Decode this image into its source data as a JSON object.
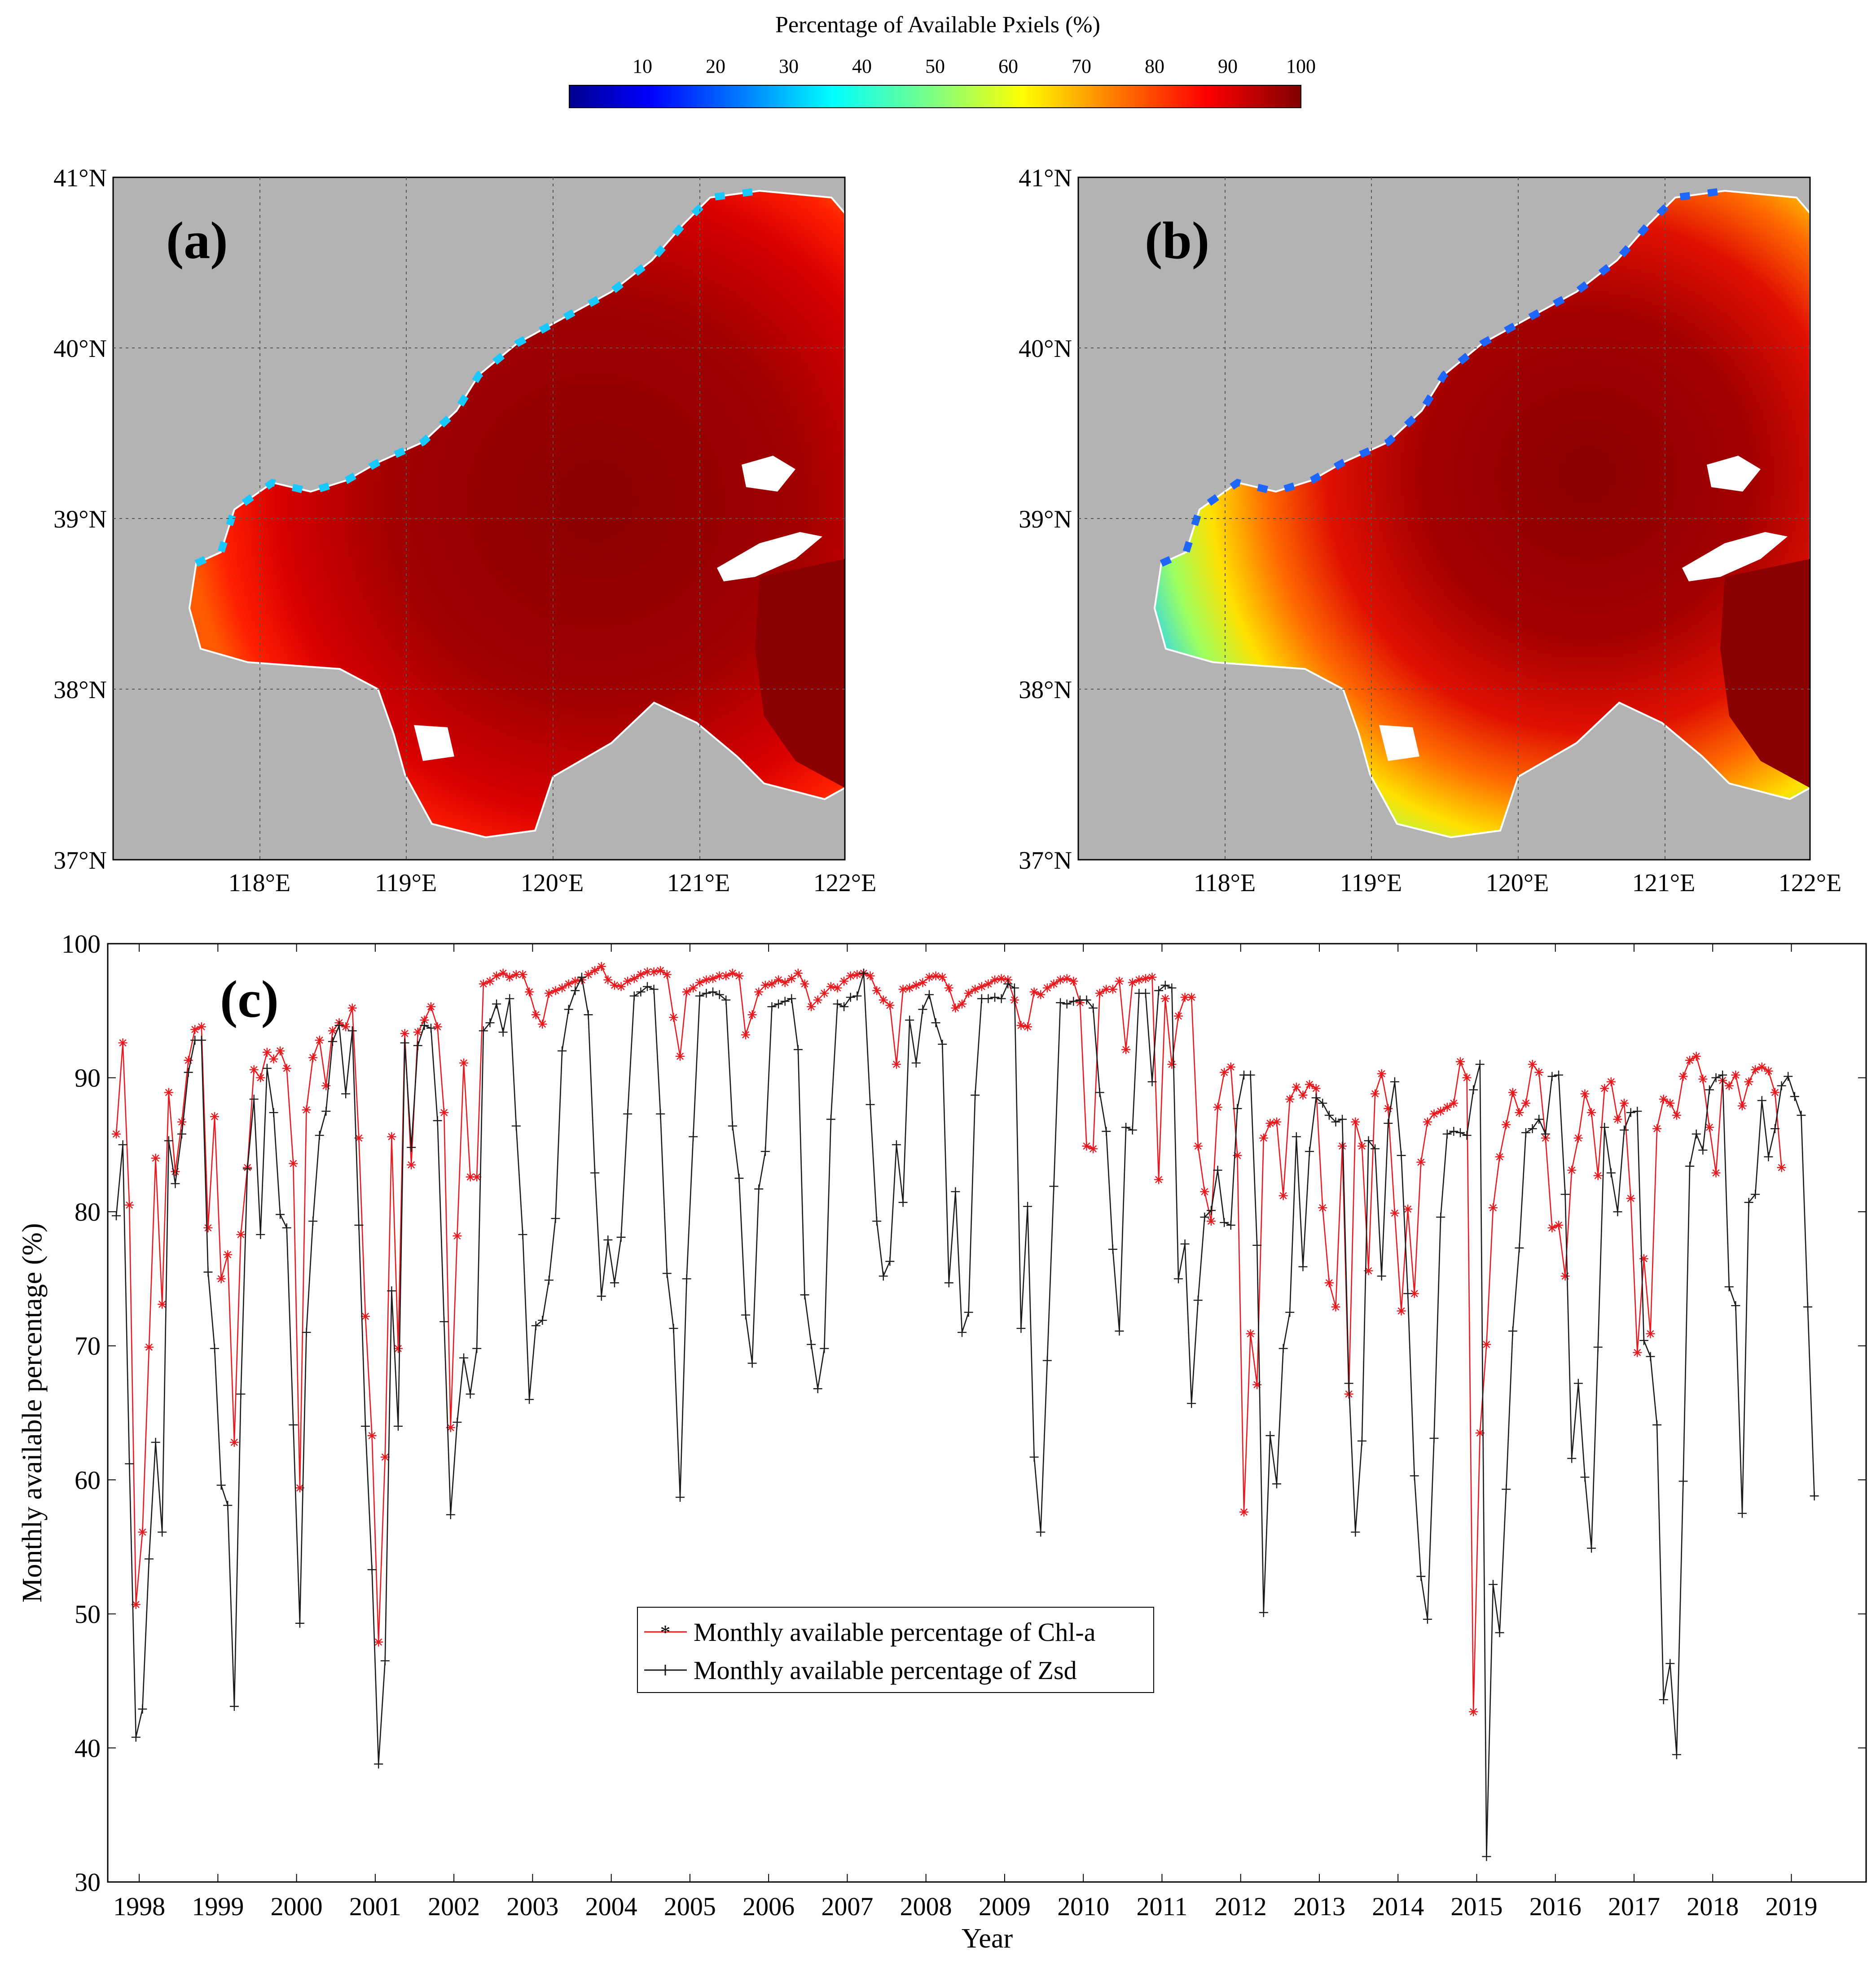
{
  "colorbar": {
    "title": "Percentage of Available Pxiels (%)",
    "ticks": [
      "10",
      "20",
      "30",
      "40",
      "50",
      "60",
      "70",
      "80",
      "90",
      "100"
    ],
    "min": 0,
    "max": 100,
    "colormap": "jet",
    "colors": [
      "#00008f",
      "#0000ff",
      "#0080ff",
      "#00ffff",
      "#80ff80",
      "#ffff00",
      "#ff8000",
      "#ff0000",
      "#800000"
    ]
  },
  "maps": {
    "panels": [
      {
        "label": "(a)"
      },
      {
        "label": "(b)"
      }
    ],
    "lat_labels": [
      "41°N",
      "40°N",
      "39°N",
      "38°N",
      "37°N"
    ],
    "lon_labels": [
      "118°E",
      "119°E",
      "120°E",
      "121°E",
      "122°E"
    ],
    "land_color": "#b3b3b3"
  },
  "chart_data": {
    "type": "line",
    "panel_label": "(c)",
    "xlabel": "Year",
    "ylabel": "Monthly available percentage (%)",
    "ylim": [
      30,
      100
    ],
    "yticks": [
      30,
      40,
      50,
      60,
      70,
      80,
      90,
      100
    ],
    "xlim": [
      1997.6,
      2019.95
    ],
    "year_labels": [
      "1998",
      "1999",
      "2000",
      "2001",
      "2002",
      "2003",
      "2004",
      "2005",
      "2006",
      "2007",
      "2008",
      "2009",
      "2010",
      "2011",
      "2012",
      "2013",
      "2014",
      "2015",
      "2016",
      "2017",
      "2018",
      "2019"
    ],
    "grid": false,
    "legend_position": "lower-center",
    "x_start": "1997-09",
    "x_step": "1 month",
    "series": [
      {
        "name": "Monthly available percentage of Chl-a",
        "color": "#e8191e",
        "marker": "asterisk",
        "values": [
          85.8,
          92.6,
          80.5,
          50.7,
          56.1,
          69.9,
          84,
          73.1,
          88.9,
          83,
          86.7,
          91.3,
          93.6,
          93.8,
          78.8,
          87.1,
          75,
          76.8,
          62.8,
          78.3,
          83.3,
          90.6,
          90,
          91.9,
          91.4,
          92,
          90.7,
          83.6,
          59.4,
          87.6,
          91.5,
          92.8,
          89.4,
          93.5,
          94.1,
          93.8,
          95.2,
          85.5,
          72.2,
          63.3,
          47.9,
          61.7,
          85.6,
          69.8,
          93.3,
          83.5,
          93.4,
          94.3,
          95.3,
          93.8,
          87.4,
          63.9,
          78.2,
          91.1,
          82.6,
          82.6,
          97,
          97.2,
          97.6,
          97.8,
          97.5,
          97.7,
          97.7,
          96.4,
          94.7,
          94,
          96.3,
          96.5,
          96.7,
          97,
          97.2,
          97.3,
          97.7,
          98,
          98.3,
          97.3,
          96.9,
          96.8,
          97.2,
          97.4,
          97.7,
          97.9,
          97.9,
          98,
          97.7,
          94.5,
          91.6,
          96.4,
          96.7,
          97.1,
          97.3,
          97.4,
          97.6,
          97.6,
          97.8,
          97.6,
          93.2,
          94.7,
          96.4,
          96.9,
          97,
          97.3,
          97.1,
          97.4,
          97.8,
          97,
          95.3,
          95.8,
          96.3,
          96.8,
          96.7,
          97.2,
          97.6,
          97.7,
          97.8,
          97.6,
          96.5,
          95.8,
          95.4,
          91,
          96.6,
          96.7,
          96.9,
          97.1,
          97.5,
          97.6,
          97.5,
          96.7,
          95.2,
          95.5,
          96.3,
          96.6,
          96.8,
          97,
          97.3,
          97.4,
          97.3,
          95.8,
          93.9,
          93.8,
          96.4,
          96.2,
          96.7,
          97,
          97.3,
          97.4,
          97.2,
          95.6,
          84.9,
          84.7,
          96.3,
          96.6,
          96.6,
          97.2,
          92.1,
          97.1,
          97.3,
          97.4,
          97.5,
          82.4,
          95.9,
          91,
          94.6,
          96,
          96,
          84.9,
          81.5,
          79.3,
          87.8,
          90.4,
          90.8,
          84.2,
          57.6,
          70.9,
          67.1,
          85.5,
          86.6,
          86.7,
          81.2,
          88.4,
          89.3,
          88.7,
          89.5,
          89.2,
          80.3,
          74.7,
          72.9,
          84.9,
          66.4,
          86.7,
          84.9,
          75.6,
          88.8,
          90.3,
          87.7,
          79.9,
          72.6,
          80.2,
          73.9,
          83.7,
          86.7,
          87.3,
          87.5,
          87.8,
          88.1,
          91.2,
          90,
          42.7,
          63.5,
          70.1,
          80.3,
          84.1,
          86.5,
          88.9,
          87.4,
          88.1,
          91,
          90.4,
          85.5,
          78.8,
          79,
          75.2,
          83.1,
          85.5,
          88.8,
          87.4,
          82.7,
          89.2,
          89.7,
          86.9,
          88.1,
          81,
          69.5,
          76.5,
          70.9,
          86.2,
          88.4,
          88.1,
          87.2,
          90.1,
          91.3,
          91.6,
          89.9,
          86.3,
          82.9,
          89.8,
          89.4,
          90.2,
          87.9,
          89.7,
          90.6,
          90.8,
          90.5,
          88.9,
          83.3
        ]
      },
      {
        "name": "Monthly available percentage of Zsd",
        "color": "#1a1a1a",
        "marker": "plus",
        "values": [
          79.7,
          85,
          61.2,
          40.8,
          42.9,
          54.1,
          62.8,
          56.1,
          85.3,
          82.1,
          85.8,
          90.4,
          92.8,
          92.8,
          75.5,
          69.8,
          59.6,
          58.1,
          43.1,
          66.4,
          83.2,
          88.4,
          78.3,
          90.7,
          87.4,
          79.8,
          78.8,
          64.1,
          49.3,
          71,
          79.3,
          85.7,
          87.5,
          92.7,
          93.9,
          88.8,
          93.5,
          79,
          64,
          53.3,
          38.8,
          46.5,
          74.1,
          64,
          92.6,
          84.8,
          92.4,
          93.9,
          93.7,
          86.8,
          71.8,
          57.4,
          64.3,
          69.1,
          66.4,
          69.8,
          93.5,
          94.1,
          95.5,
          93.4,
          95.9,
          86.4,
          78.3,
          66,
          71.5,
          71.9,
          74.9,
          79.5,
          92,
          95.1,
          96.5,
          97.5,
          94.7,
          82.9,
          73.7,
          77.9,
          74.7,
          78.1,
          87.3,
          96.1,
          96.4,
          96.8,
          96.6,
          87.3,
          75.4,
          71.3,
          58.7,
          75,
          85.6,
          96.1,
          96.3,
          96.4,
          96.2,
          95.8,
          86.4,
          82.5,
          72.3,
          68.7,
          81.7,
          84.5,
          95.3,
          95.5,
          95.7,
          95.9,
          92.1,
          73.8,
          70.1,
          66.8,
          69.8,
          86.9,
          95.5,
          95.3,
          96,
          96.1,
          97.8,
          88,
          79.3,
          75.2,
          76.3,
          85,
          80.7,
          94.3,
          91.1,
          95.1,
          96.2,
          94.1,
          92.5,
          74.7,
          81.5,
          71,
          72.5,
          88.7,
          95.9,
          95.9,
          96,
          95.9,
          97,
          96.7,
          71.3,
          80.4,
          61.7,
          56.1,
          68.9,
          81.9,
          95.6,
          95.5,
          95.7,
          95.8,
          95.8,
          95.2,
          88.9,
          86,
          77.2,
          71.1,
          86.3,
          86.1,
          96.3,
          96.3,
          89.7,
          96.5,
          96.9,
          96.7,
          75,
          77.6,
          65.7,
          73.4,
          79.6,
          80.1,
          83.1,
          79.2,
          79,
          87.7,
          90.2,
          90.2,
          77.5,
          50.1,
          63.3,
          59.7,
          69.8,
          72.5,
          85.6,
          75.9,
          84.5,
          88.5,
          88.1,
          87.2,
          86.7,
          86.9,
          67.2,
          56.1,
          62.9,
          85.3,
          84.7,
          75.2,
          86.6,
          89.7,
          84.2,
          73.9,
          60.3,
          52.8,
          49.6,
          63.1,
          79.6,
          85.8,
          86,
          85.9,
          85.7,
          89.1,
          91,
          31.9,
          52.2,
          48.6,
          59.3,
          71.1,
          77.3,
          85.9,
          86.2,
          86.9,
          85.8,
          90.1,
          90.2,
          81.3,
          61.6,
          67.2,
          60.2,
          54.9,
          69.9,
          86.3,
          82.9,
          80,
          86.1,
          87.4,
          87.5,
          70.4,
          69.2,
          64.1,
          43.6,
          46.3,
          39.5,
          59.9,
          83.4,
          85.8,
          84.6,
          89.1,
          90,
          90.2,
          74.4,
          73,
          57.5,
          80.7,
          81.3,
          88.3,
          84.1,
          86.2,
          89.4,
          90.1,
          88.6,
          87.2,
          72.9,
          58.8
        ]
      }
    ]
  }
}
